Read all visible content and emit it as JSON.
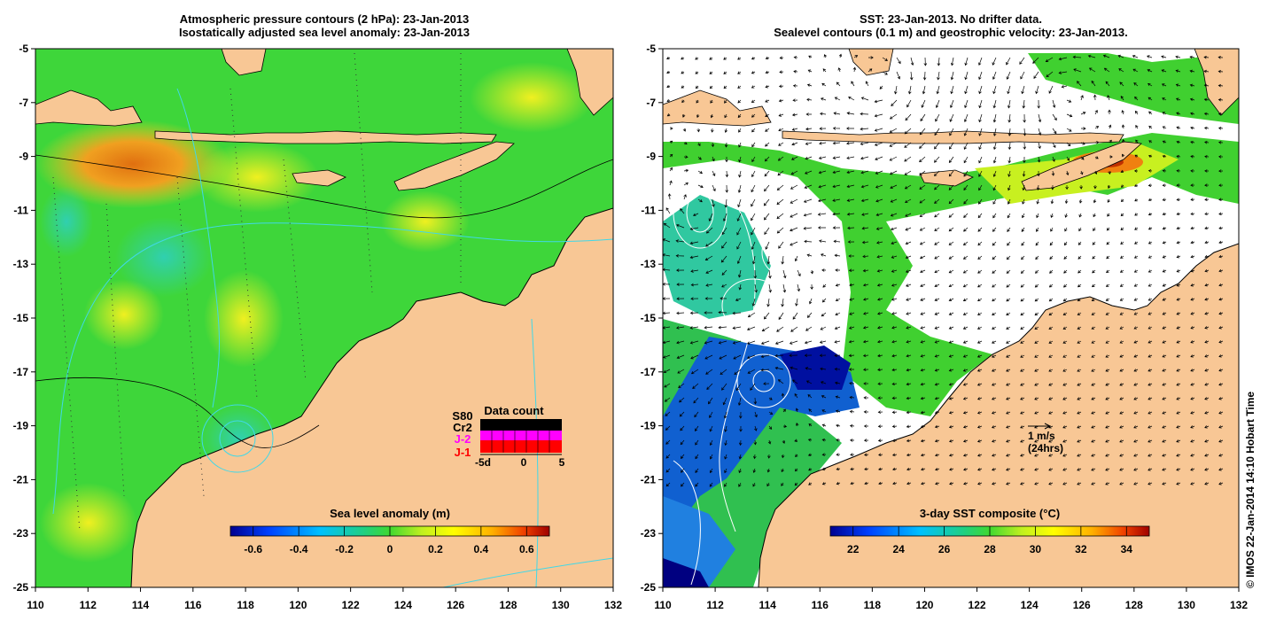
{
  "left_panel": {
    "title_line1": "Atmospheric pressure contours (2 hPa): 23-Jan-2013",
    "title_line2": "Isostatically adjusted sea level anomaly: 23-Jan-2013",
    "colorbar_label": "Sea level anomaly (m)",
    "colorbar_ticks": [
      "-0.6",
      "-0.4",
      "-0.2",
      "0",
      "0.2",
      "0.4",
      "0.6"
    ],
    "colorbar_range": [
      -0.6,
      0.6
    ],
    "legend": {
      "title": "Data count",
      "satellites": [
        "S80",
        "Cr2",
        "J-2",
        "J-1"
      ],
      "satellite_colors": [
        "#000000",
        "#000000",
        "#ff00ff",
        "#ff0000"
      ],
      "axis_ticks": [
        "-5d",
        "0",
        "5"
      ]
    }
  },
  "right_panel": {
    "title_line1": "SST: 23-Jan-2013. No drifter data.",
    "title_line2": "Sealevel contours (0.1 m) and geostrophic velocity: 23-Jan-2013.",
    "colorbar_label": "3-day SST composite (°C)",
    "colorbar_ticks": [
      "22",
      "24",
      "26",
      "28",
      "30",
      "32",
      "34"
    ],
    "colorbar_range": [
      22,
      34
    ],
    "velocity_scale_label": "1 m/s",
    "velocity_scale_sublabel": "(24hrs)"
  },
  "map_extent": {
    "lon": [
      110,
      132
    ],
    "lat": [
      -25,
      -5
    ]
  },
  "x_ticks": [
    "110",
    "112",
    "114",
    "116",
    "118",
    "120",
    "122",
    "124",
    "126",
    "128",
    "130",
    "132"
  ],
  "y_ticks": [
    "-5",
    "-7",
    "-9",
    "-11",
    "-13",
    "-15",
    "-17",
    "-19",
    "-21",
    "-23",
    "-25"
  ],
  "credit": "© IMOS 22-Jan-2014 14:10 Hobart Time",
  "colors": {
    "land": "#f8c795",
    "sea_green": "#3ed63a",
    "contour_cyan": "#40d8e8"
  }
}
